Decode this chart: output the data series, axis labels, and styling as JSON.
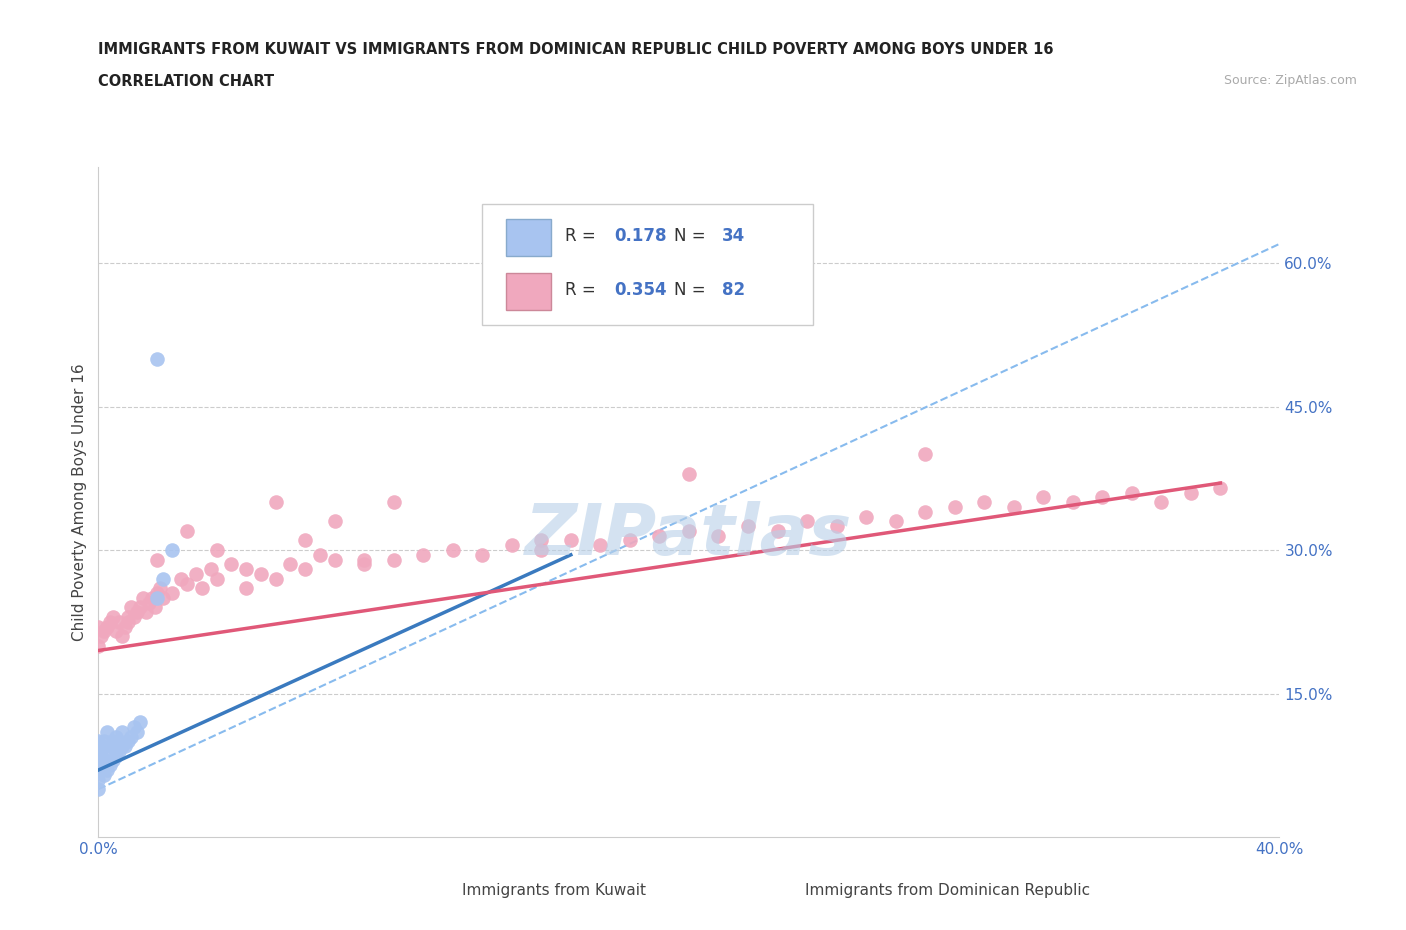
{
  "title_line1": "IMMIGRANTS FROM KUWAIT VS IMMIGRANTS FROM DOMINICAN REPUBLIC CHILD POVERTY AMONG BOYS UNDER 16",
  "title_line2": "CORRELATION CHART",
  "source_text": "Source: ZipAtlas.com",
  "ylabel": "Child Poverty Among Boys Under 16",
  "xlim": [
    0.0,
    0.4
  ],
  "ylim": [
    0.0,
    0.7
  ],
  "grid_color": "#cccccc",
  "background_color": "#ffffff",
  "watermark_text": "ZIPatlas",
  "watermark_color": "#b8d0e8",
  "legend_R1": "0.178",
  "legend_N1": "34",
  "legend_R2": "0.354",
  "legend_N2": "82",
  "kuwait_color": "#a8c4f0",
  "dominican_color": "#f0a8be",
  "line1_color": "#3a7abf",
  "line2_color": "#e05878",
  "legend_label1": "Immigrants from Kuwait",
  "legend_label2": "Immigrants from Dominican Republic",
  "kuwait_x": [
    0.0,
    0.0,
    0.0,
    0.0,
    0.0,
    0.0,
    0.001,
    0.001,
    0.001,
    0.002,
    0.002,
    0.002,
    0.003,
    0.003,
    0.003,
    0.004,
    0.004,
    0.005,
    0.005,
    0.006,
    0.006,
    0.007,
    0.008,
    0.008,
    0.009,
    0.01,
    0.011,
    0.012,
    0.013,
    0.014,
    0.02,
    0.022,
    0.025,
    0.02
  ],
  "kuwait_y": [
    0.05,
    0.07,
    0.08,
    0.09,
    0.1,
    0.06,
    0.075,
    0.085,
    0.095,
    0.065,
    0.08,
    0.1,
    0.07,
    0.09,
    0.11,
    0.075,
    0.095,
    0.08,
    0.1,
    0.085,
    0.105,
    0.09,
    0.095,
    0.11,
    0.095,
    0.1,
    0.105,
    0.115,
    0.11,
    0.12,
    0.25,
    0.27,
    0.3,
    0.5
  ],
  "dr_x": [
    0.0,
    0.0,
    0.001,
    0.002,
    0.003,
    0.004,
    0.005,
    0.006,
    0.007,
    0.008,
    0.009,
    0.01,
    0.011,
    0.012,
    0.013,
    0.014,
    0.015,
    0.016,
    0.017,
    0.018,
    0.019,
    0.02,
    0.021,
    0.022,
    0.025,
    0.028,
    0.03,
    0.033,
    0.035,
    0.038,
    0.04,
    0.045,
    0.05,
    0.055,
    0.06,
    0.065,
    0.07,
    0.075,
    0.08,
    0.09,
    0.1,
    0.11,
    0.12,
    0.13,
    0.14,
    0.15,
    0.16,
    0.17,
    0.18,
    0.19,
    0.2,
    0.21,
    0.22,
    0.23,
    0.24,
    0.25,
    0.26,
    0.27,
    0.28,
    0.29,
    0.3,
    0.31,
    0.32,
    0.33,
    0.34,
    0.35,
    0.36,
    0.37,
    0.38,
    0.01,
    0.02,
    0.03,
    0.04,
    0.05,
    0.06,
    0.07,
    0.08,
    0.09,
    0.1,
    0.15,
    0.2,
    0.28
  ],
  "dr_y": [
    0.2,
    0.22,
    0.21,
    0.215,
    0.22,
    0.225,
    0.23,
    0.215,
    0.225,
    0.21,
    0.22,
    0.225,
    0.24,
    0.23,
    0.235,
    0.24,
    0.25,
    0.235,
    0.245,
    0.25,
    0.24,
    0.255,
    0.26,
    0.25,
    0.255,
    0.27,
    0.265,
    0.275,
    0.26,
    0.28,
    0.27,
    0.285,
    0.26,
    0.275,
    0.27,
    0.285,
    0.28,
    0.295,
    0.29,
    0.285,
    0.29,
    0.295,
    0.3,
    0.295,
    0.305,
    0.3,
    0.31,
    0.305,
    0.31,
    0.315,
    0.32,
    0.315,
    0.325,
    0.32,
    0.33,
    0.325,
    0.335,
    0.33,
    0.34,
    0.345,
    0.35,
    0.345,
    0.355,
    0.35,
    0.355,
    0.36,
    0.35,
    0.36,
    0.365,
    0.23,
    0.29,
    0.32,
    0.3,
    0.28,
    0.35,
    0.31,
    0.33,
    0.29,
    0.35,
    0.31,
    0.38,
    0.4
  ],
  "dashed_line_x": [
    0.0,
    0.4
  ],
  "dashed_line_y": [
    0.05,
    0.62
  ],
  "blue_line_x": [
    0.0,
    0.16
  ],
  "blue_line_y": [
    0.07,
    0.295
  ],
  "pink_line_x": [
    0.0,
    0.38
  ],
  "pink_line_y": [
    0.195,
    0.37
  ]
}
